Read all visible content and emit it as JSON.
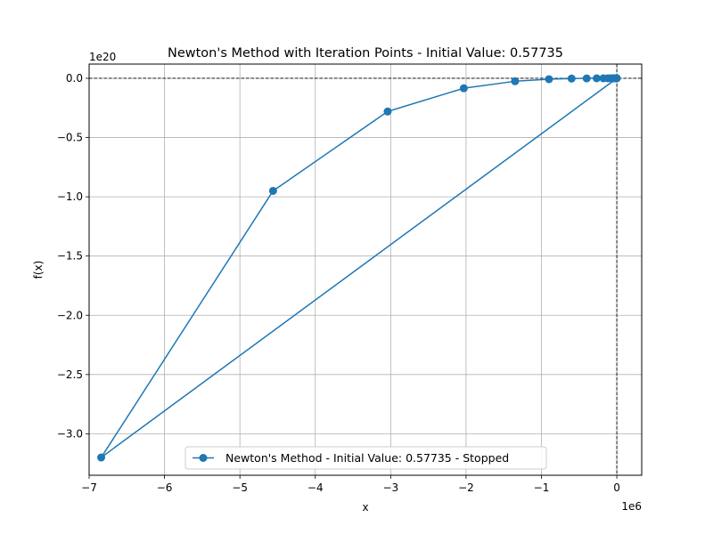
{
  "chart_data": {
    "type": "line",
    "title": "Newton's Method with Iteration Points - Initial Value: 0.57735",
    "xlabel": "x",
    "ylabel": "f(x)",
    "x_offset_label": "1e6",
    "y_offset_label": "1e20",
    "xlim": [
      -7.0,
      0.33
    ],
    "ylim": [
      -3.35,
      0.12
    ],
    "x_ticks": [
      -7,
      -6,
      -5,
      -4,
      -3,
      -2,
      -1,
      0
    ],
    "x_tick_labels": [
      "−7",
      "−6",
      "−5",
      "−4",
      "−3",
      "−2",
      "−1",
      "0"
    ],
    "y_ticks": [
      0.0,
      -0.5,
      -1.0,
      -1.5,
      -2.0,
      -2.5,
      -3.0
    ],
    "y_tick_labels": [
      "0.0",
      "−0.5",
      "−1.0",
      "−1.5",
      "−2.0",
      "−2.5",
      "−3.0"
    ],
    "grid": true,
    "reference_lines": {
      "y": 0,
      "x": 0,
      "style": "dashed",
      "color": "#000000"
    },
    "legend": {
      "position": "lower center"
    },
    "series": [
      {
        "name": "Newton's Method - Initial Value: 0.57735 - Stopped",
        "color": "#1f77b4",
        "marker": "circle",
        "x": [
          5.7735e-07,
          -6.84,
          -4.56,
          -3.04,
          -2.03,
          -1.35,
          -0.9,
          -0.6,
          -0.4,
          -0.267,
          -0.178,
          -0.119,
          -0.079,
          -0.053,
          -0.035,
          -0.023,
          -0.016,
          -0.01,
          -0.007,
          -0.005,
          -0.003
        ],
        "y": [
          0.0,
          -3.2,
          -0.95,
          -0.28,
          -0.084,
          -0.025,
          -0.0074,
          -0.0022,
          -0.00065,
          -0.00019,
          -6e-05,
          -2e-05,
          0.0,
          0.0,
          0.0,
          0.0,
          0.0,
          0.0,
          0.0,
          0.0,
          0.0
        ]
      }
    ]
  }
}
